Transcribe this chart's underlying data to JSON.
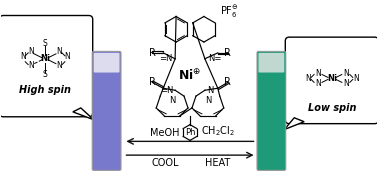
{
  "bg_color": "#ffffff",
  "vial_left_color": "#7878cc",
  "vial_left_top_color": "#dcdcee",
  "vial_right_color": "#1e9a78",
  "vial_right_top_color": "#c0d8d0",
  "vial_border": "#999999",
  "arrow_color": "#111111",
  "meoh_label": "MeOH",
  "ch2cl2_label": "CH$_2$Cl$_2$",
  "cool_label": "COOL",
  "heat_label": "HEAT",
  "high_spin_label": "High spin",
  "low_spin_label": "Low spin",
  "pf6_label": "PF$_6^{\\ominus}$",
  "ni_center": "Ni$^{\\oplus}$",
  "ph_label": "Ph",
  "font_size_arrows": 7,
  "font_size_spin": 7
}
